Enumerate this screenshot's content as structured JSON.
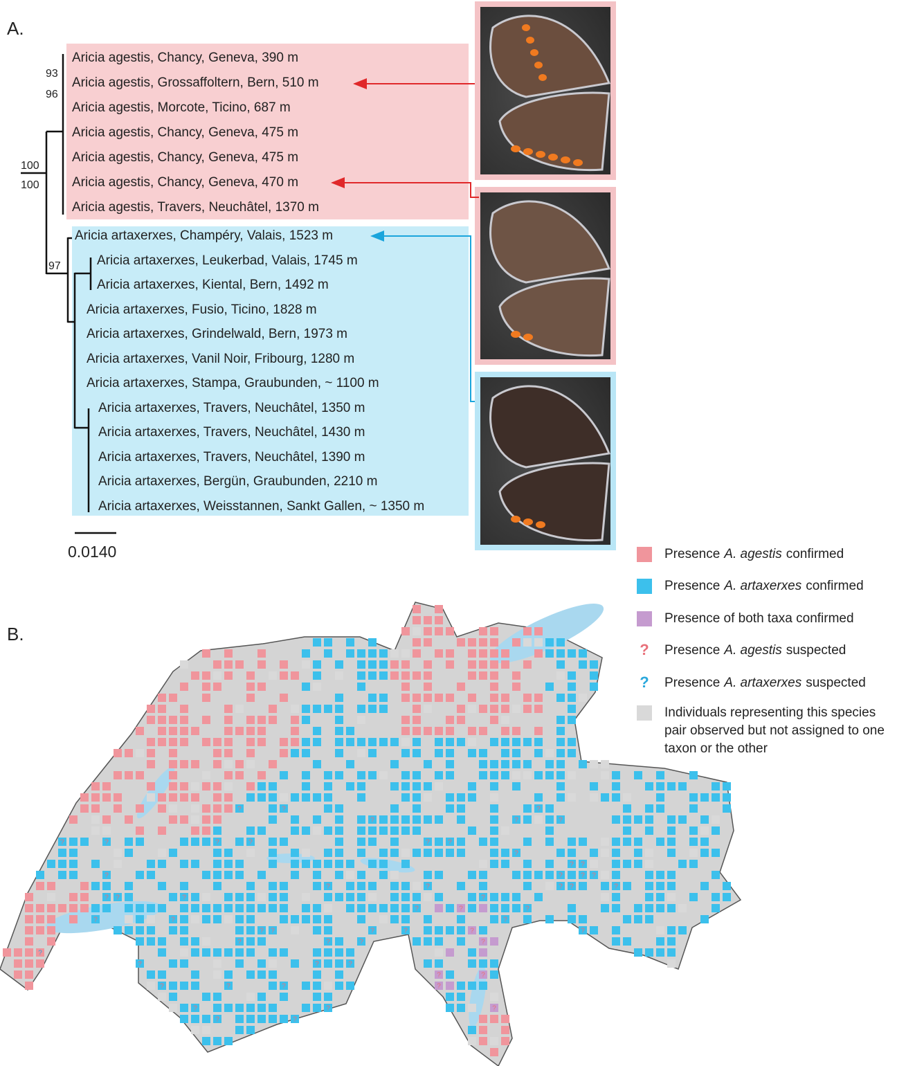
{
  "panel_a": {
    "label": "A.",
    "clade_agestis": [
      "Aricia agestis, Chancy, Geneva, 390 m",
      "Aricia agestis, Grossaffoltern, Bern, 510 m",
      "Aricia agestis, Morcote, Ticino, 687 m",
      "Aricia agestis, Chancy, Geneva, 475 m",
      "Aricia agestis, Chancy, Geneva, 475 m",
      "Aricia agestis, Chancy, Geneva, 470 m",
      "Aricia agestis, Travers, Neuchâtel, 1370 m"
    ],
    "clade_artaxerxes": [
      "Aricia artaxerxes, Champéry, Valais, 1523 m",
      "Aricia artaxerxes, Leukerbad, Valais, 1745 m",
      "Aricia artaxerxes, Kiental, Bern, 1492 m",
      "Aricia artaxerxes, Fusio, Ticino, 1828 m",
      "Aricia artaxerxes, Grindelwald, Bern, 1973 m",
      "Aricia artaxerxes, Vanil Noir, Fribourg, 1280 m",
      "Aricia artaxerxes, Stampa, Graubunden, ~ 1100 m",
      "Aricia artaxerxes, Travers, Neuchâtel, 1350 m",
      "Aricia artaxerxes, Travers, Neuchâtel, 1430 m",
      "Aricia artaxerxes, Travers, Neuchâtel, 1390 m",
      "Aricia artaxerxes, Bergün, Graubunden, 2210 m",
      "Aricia artaxerxes, Weisstannen, Sankt Gallen, ~ 1350 m"
    ],
    "support_values": [
      "93",
      "96",
      "100",
      "100",
      "97"
    ],
    "scale_bar": "0.0140"
  },
  "panel_b": {
    "label": "B.",
    "legend": [
      {
        "prefix": "Presence",
        "taxon": "A. agestis",
        "suffix": "confirmed"
      },
      {
        "prefix": "Presence",
        "taxon": "A. artaxerxes",
        "suffix": "confirmed"
      },
      {
        "text": "Presence of both taxa confirmed"
      },
      {
        "symbol": "?",
        "prefix": "Presence",
        "taxon": "A. agestis",
        "suffix": "suspected"
      },
      {
        "symbol": "?",
        "prefix": "Presence",
        "taxon": "A. artaxerxes",
        "suffix": "suspected"
      },
      {
        "lines": [
          "Individuals representing this species",
          "pair observed but not assigned to one",
          "taxon or the other"
        ]
      }
    ]
  }
}
